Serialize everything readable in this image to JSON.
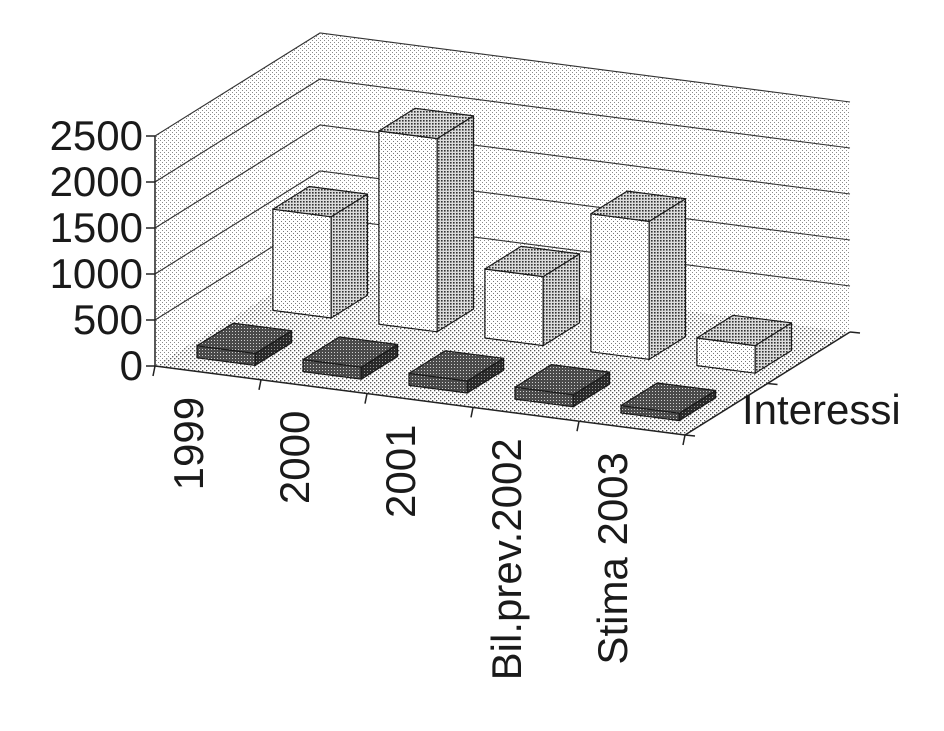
{
  "chart_data": {
    "type": "bar",
    "style": "3d-grouped-columns",
    "categories": [
      "1999",
      "2000",
      "2001",
      "Bil.prev.2002",
      "Stima 2003"
    ],
    "series": [
      {
        "name": "",
        "values": [
          130,
          130,
          130,
          130,
          80
        ],
        "pattern": "dark-dots"
      },
      {
        "name": "Interessi",
        "values": [
          1100,
          2100,
          750,
          1500,
          300
        ],
        "pattern": "light-dots"
      }
    ],
    "ylim": [
      0,
      2500
    ],
    "yticks": [
      "0",
      "500",
      "1000",
      "1500",
      "2000",
      "2500"
    ],
    "depth_label": "Interessi",
    "grid": true,
    "colors": {
      "text": "#1a1a1a",
      "grid": "#333333",
      "front_series": "#3a3a3a",
      "back_series": "#f0f0f0"
    }
  }
}
